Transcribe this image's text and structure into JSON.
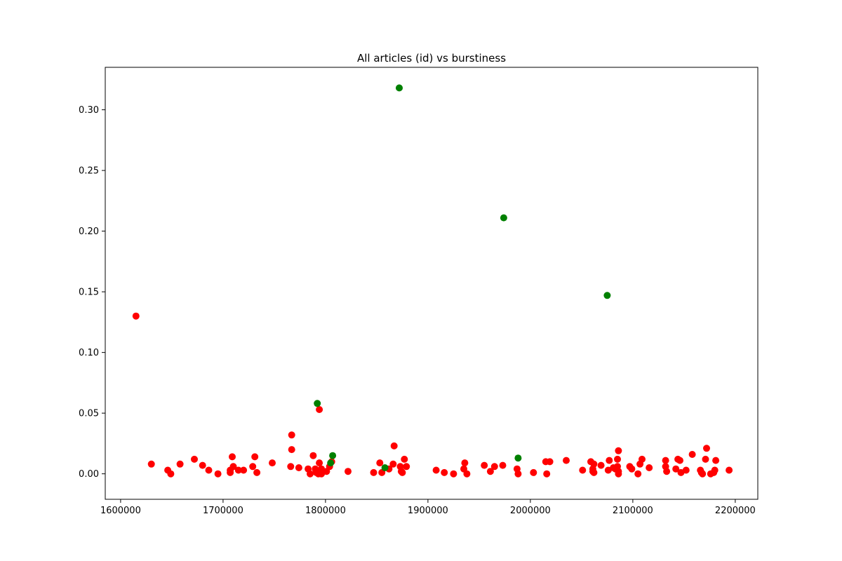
{
  "chart_data": {
    "type": "scatter",
    "title": "All articles (id) vs burstiness",
    "xlabel": "",
    "ylabel": "",
    "xlim": [
      1585000,
      2222000
    ],
    "ylim": [
      -0.021,
      0.335
    ],
    "x_ticks": [
      1600000,
      1700000,
      1800000,
      1900000,
      2000000,
      2100000,
      2200000
    ],
    "x_tick_labels": [
      "1600000",
      "1700000",
      "1800000",
      "1900000",
      "2000000",
      "2100000",
      "2200000"
    ],
    "y_ticks": [
      0.0,
      0.05,
      0.1,
      0.15,
      0.2,
      0.25,
      0.3
    ],
    "y_tick_labels": [
      "0.00",
      "0.05",
      "0.10",
      "0.15",
      "0.20",
      "0.25",
      "0.30"
    ],
    "grid": false,
    "legend": "none",
    "series": [
      {
        "color": "#ff0000",
        "points": [
          [
            1615000,
            0.13
          ],
          [
            1630000,
            0.008
          ],
          [
            1646000,
            0.003
          ],
          [
            1649000,
            0.0
          ],
          [
            1658000,
            0.008
          ],
          [
            1672000,
            0.012
          ],
          [
            1680000,
            0.007
          ],
          [
            1686000,
            0.003
          ],
          [
            1695000,
            0.0
          ],
          [
            1707000,
            0.003
          ],
          [
            1707000,
            0.001
          ],
          [
            1709000,
            0.014
          ],
          [
            1710000,
            0.006
          ],
          [
            1715000,
            0.003
          ],
          [
            1720000,
            0.003
          ],
          [
            1729000,
            0.006
          ],
          [
            1731000,
            0.014
          ],
          [
            1733000,
            0.001
          ],
          [
            1748000,
            0.009
          ],
          [
            1766000,
            0.006
          ],
          [
            1767000,
            0.032
          ],
          [
            1767000,
            0.02
          ],
          [
            1774000,
            0.005
          ],
          [
            1783000,
            0.004
          ],
          [
            1785000,
            0.0
          ],
          [
            1788000,
            0.015
          ],
          [
            1790000,
            0.004
          ],
          [
            1791000,
            0.001
          ],
          [
            1793000,
            0.0
          ],
          [
            1794000,
            0.053
          ],
          [
            1794000,
            0.009
          ],
          [
            1796000,
            0.004
          ],
          [
            1796000,
            0.0
          ],
          [
            1801000,
            0.002
          ],
          [
            1804000,
            0.006
          ],
          [
            1806000,
            0.01
          ],
          [
            1822000,
            0.002
          ],
          [
            1847000,
            0.001
          ],
          [
            1853000,
            0.009
          ],
          [
            1855000,
            0.001
          ],
          [
            1862000,
            0.004
          ],
          [
            1866000,
            0.008
          ],
          [
            1867000,
            0.023
          ],
          [
            1873000,
            0.006
          ],
          [
            1874000,
            0.002
          ],
          [
            1875000,
            0.001
          ],
          [
            1877000,
            0.012
          ],
          [
            1879000,
            0.006
          ],
          [
            1908000,
            0.003
          ],
          [
            1916000,
            0.001
          ],
          [
            1925000,
            0.0
          ],
          [
            1935000,
            0.004
          ],
          [
            1936000,
            0.009
          ],
          [
            1938000,
            0.0
          ],
          [
            1955000,
            0.007
          ],
          [
            1961000,
            0.002
          ],
          [
            1965000,
            0.006
          ],
          [
            1973000,
            0.007
          ],
          [
            1987000,
            0.004
          ],
          [
            1988000,
            0.0
          ],
          [
            2003000,
            0.001
          ],
          [
            2015000,
            0.01
          ],
          [
            2016000,
            0.0
          ],
          [
            2019000,
            0.01
          ],
          [
            2035000,
            0.011
          ],
          [
            2051000,
            0.003
          ],
          [
            2059000,
            0.01
          ],
          [
            2061000,
            0.004
          ],
          [
            2061000,
            0.002
          ],
          [
            2062000,
            0.001
          ],
          [
            2062000,
            0.008
          ],
          [
            2069000,
            0.007
          ],
          [
            2076000,
            0.003
          ],
          [
            2077000,
            0.011
          ],
          [
            2081000,
            0.005
          ],
          [
            2083000,
            0.004
          ],
          [
            2085000,
            0.012
          ],
          [
            2085000,
            0.006
          ],
          [
            2086000,
            0.002
          ],
          [
            2086000,
            0.0
          ],
          [
            2086000,
            0.019
          ],
          [
            2097000,
            0.006
          ],
          [
            2099000,
            0.004
          ],
          [
            2105000,
            0.0
          ],
          [
            2107000,
            0.008
          ],
          [
            2109000,
            0.012
          ],
          [
            2116000,
            0.005
          ],
          [
            2132000,
            0.011
          ],
          [
            2132000,
            0.006
          ],
          [
            2133000,
            0.002
          ],
          [
            2142000,
            0.004
          ],
          [
            2144000,
            0.012
          ],
          [
            2146000,
            0.011
          ],
          [
            2147000,
            0.001
          ],
          [
            2152000,
            0.003
          ],
          [
            2158000,
            0.016
          ],
          [
            2166000,
            0.003
          ],
          [
            2167000,
            0.001
          ],
          [
            2168000,
            0.0
          ],
          [
            2171000,
            0.012
          ],
          [
            2172000,
            0.021
          ],
          [
            2176000,
            0.0
          ],
          [
            2179000,
            0.001
          ],
          [
            2180000,
            0.003
          ],
          [
            2181000,
            0.011
          ],
          [
            2194000,
            0.003
          ]
        ]
      },
      {
        "color": "#008000",
        "points": [
          [
            1872000,
            0.318
          ],
          [
            1974000,
            0.211
          ],
          [
            2075000,
            0.147
          ],
          [
            1792000,
            0.058
          ],
          [
            1807000,
            0.015
          ],
          [
            1988000,
            0.013
          ],
          [
            1805000,
            0.009
          ],
          [
            1858000,
            0.005
          ]
        ]
      }
    ]
  }
}
